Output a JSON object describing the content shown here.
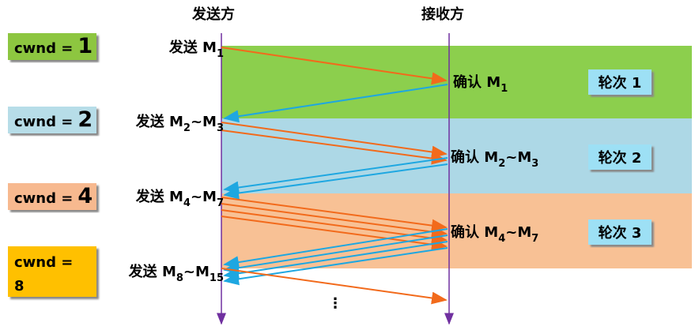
{
  "sender": "发送方",
  "receiver": "接收方",
  "rounds": [
    {
      "cwnd": {
        "label": "cwnd =",
        "value": 1
      },
      "send": [
        {
          "text": "发送 M"
        },
        {
          "sub": "1"
        }
      ],
      "ack": [
        {
          "text": "确认 M"
        },
        {
          "sub": "1"
        }
      ],
      "round": "轮次 1"
    },
    {
      "cwnd": {
        "label": "cwnd =",
        "value": 2
      },
      "send": [
        {
          "text": "发送 M"
        },
        {
          "sub": "2"
        },
        {
          "text": "~M"
        },
        {
          "sub": "3"
        }
      ],
      "ack": [
        {
          "text": "确认 M"
        },
        {
          "sub": "2"
        },
        {
          "text": "~M"
        },
        {
          "sub": "3"
        }
      ],
      "round": "轮次 2"
    },
    {
      "cwnd": {
        "label": "cwnd =",
        "value": 4
      },
      "send": [
        {
          "text": "发送 M"
        },
        {
          "sub": "4"
        },
        {
          "text": "~M"
        },
        {
          "sub": "7"
        }
      ],
      "ack": [
        {
          "text": "确认 M"
        },
        {
          "sub": "4"
        },
        {
          "text": "~M"
        },
        {
          "sub": "7"
        }
      ],
      "round": "轮次 3"
    }
  ],
  "next": {
    "cwnd": {
      "label": "cwnd =",
      "value": 8
    },
    "send": [
      {
        "text": "发送 M"
      },
      {
        "sub": "8"
      },
      {
        "text": "~M"
      },
      {
        "sub": "15"
      }
    ]
  }
}
